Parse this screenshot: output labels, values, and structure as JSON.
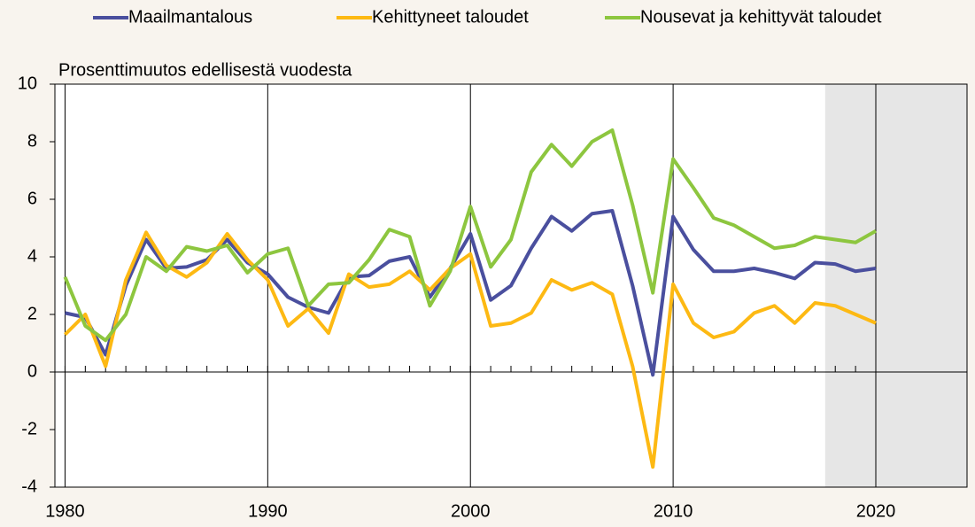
{
  "chart_data": {
    "type": "line",
    "subtitle": "Prosenttimuutos edellisestä vuodesta",
    "x": [
      1980,
      1981,
      1982,
      1983,
      1984,
      1985,
      1986,
      1987,
      1988,
      1989,
      1990,
      1991,
      1992,
      1993,
      1994,
      1995,
      1996,
      1997,
      1998,
      1999,
      2000,
      2001,
      2002,
      2003,
      2004,
      2005,
      2006,
      2007,
      2008,
      2009,
      2010,
      2011,
      2012,
      2013,
      2014,
      2015,
      2016,
      2017,
      2018,
      2019,
      2020
    ],
    "series": [
      {
        "name": "Maailmantalous",
        "color": "#4a4f9e",
        "values": [
          2.05,
          1.9,
          0.6,
          3.0,
          4.6,
          3.6,
          3.65,
          3.9,
          4.6,
          3.8,
          3.4,
          2.6,
          2.25,
          2.05,
          3.3,
          3.35,
          3.85,
          4.0,
          2.6,
          3.6,
          4.8,
          2.5,
          3.0,
          4.3,
          5.4,
          4.9,
          5.5,
          5.6,
          3.0,
          -0.1,
          5.4,
          4.25,
          3.5,
          3.5,
          3.6,
          3.45,
          3.25,
          3.8,
          3.75,
          3.5,
          3.6
        ]
      },
      {
        "name": "Kehittyneet taloudet",
        "color": "#fdb913",
        "values": [
          1.3,
          2.0,
          0.2,
          3.2,
          4.85,
          3.7,
          3.3,
          3.8,
          4.8,
          3.9,
          3.2,
          1.6,
          2.2,
          1.35,
          3.4,
          2.95,
          3.05,
          3.5,
          2.85,
          3.6,
          4.1,
          1.6,
          1.7,
          2.05,
          3.2,
          2.85,
          3.1,
          2.7,
          0.2,
          -3.3,
          3.05,
          1.7,
          1.2,
          1.4,
          2.05,
          2.3,
          1.7,
          2.4,
          2.3,
          2.0,
          1.7
        ]
      },
      {
        "name": "Nousevat ja kehittyvät taloudet",
        "color": "#8dc63f",
        "values": [
          3.3,
          1.6,
          1.1,
          2.0,
          4.0,
          3.5,
          4.35,
          4.2,
          4.4,
          3.45,
          4.1,
          4.3,
          2.3,
          3.05,
          3.1,
          3.9,
          4.95,
          4.7,
          2.3,
          3.5,
          5.75,
          3.65,
          4.6,
          6.95,
          7.9,
          7.15,
          8.0,
          8.4,
          5.8,
          2.75,
          7.4,
          6.4,
          5.35,
          5.1,
          4.7,
          4.3,
          4.4,
          4.7,
          4.6,
          4.5,
          4.9
        ]
      }
    ],
    "xlim": [
      1979.5,
      2024.5
    ],
    "xticks": [
      1980,
      1990,
      2000,
      2010,
      2020
    ],
    "ylim": [
      -4,
      10
    ],
    "yticks": [
      -4,
      -2,
      0,
      2,
      4,
      6,
      8,
      10
    ],
    "shade_xlim": [
      2017.5,
      2024.5
    ],
    "shade_color": "#e6e6e6",
    "legend": "top"
  }
}
